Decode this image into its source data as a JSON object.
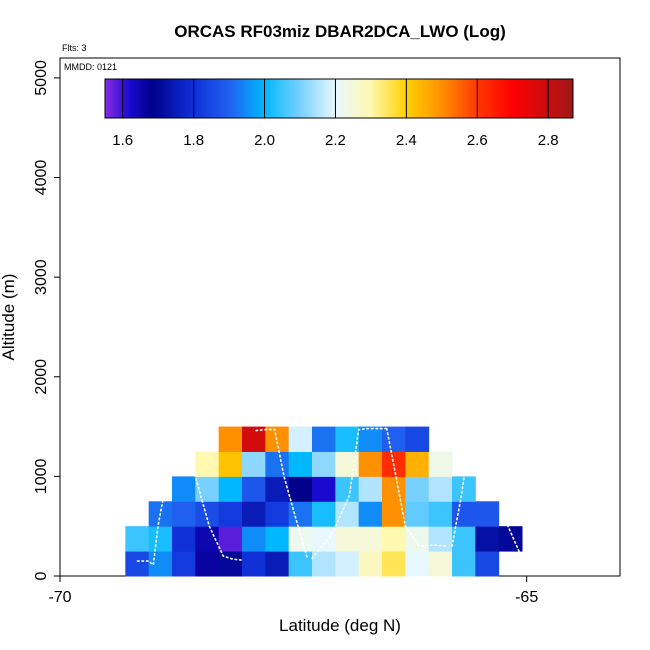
{
  "chart_data": {
    "type": "heatmap",
    "title": "ORCAS RF03miz DBAR2DCA_LWO (Log)",
    "xlabel": "Latitude (deg N)",
    "ylabel": "Altitude (m)",
    "flights_note": "Flts: 3",
    "date_note": "MMDD: 0121",
    "xlim": [
      -70,
      -64
    ],
    "ylim": [
      0,
      5200
    ],
    "x_ticks": [
      {
        "value": -70,
        "label": "-70"
      },
      {
        "value": -65,
        "label": "-65"
      }
    ],
    "y_ticks": [
      {
        "value": 0,
        "label": "0"
      },
      {
        "value": 1000,
        "label": "1000"
      },
      {
        "value": 2000,
        "label": "2000"
      },
      {
        "value": 3000,
        "label": "3000"
      },
      {
        "value": 4000,
        "label": "4000"
      },
      {
        "value": 5000,
        "label": "5000"
      }
    ],
    "colorbar": {
      "min": 1.55,
      "max": 2.87,
      "tick_values": [
        1.6,
        1.8,
        2.0,
        2.2,
        2.4,
        2.6,
        2.8
      ],
      "tick_labels": [
        "1.6",
        "1.8",
        "2.0",
        "2.2",
        "2.4",
        "2.6",
        "2.8"
      ],
      "stops": [
        {
          "value": 1.55,
          "color": "#8a2be2"
        },
        {
          "value": 1.62,
          "color": "#1a0ad0"
        },
        {
          "value": 1.68,
          "color": "#00008b"
        },
        {
          "value": 1.8,
          "color": "#1030d8"
        },
        {
          "value": 1.9,
          "color": "#2060f0"
        },
        {
          "value": 2.0,
          "color": "#00b8ff"
        },
        {
          "value": 2.1,
          "color": "#78d0ff"
        },
        {
          "value": 2.2,
          "color": "#e8f8ff"
        },
        {
          "value": 2.3,
          "color": "#fff8b0"
        },
        {
          "value": 2.4,
          "color": "#ffd000"
        },
        {
          "value": 2.5,
          "color": "#ff9000"
        },
        {
          "value": 2.6,
          "color": "#ff3800"
        },
        {
          "value": 2.7,
          "color": "#ff0000"
        },
        {
          "value": 2.87,
          "color": "#a01818"
        }
      ]
    },
    "grid": {
      "lat_min": -69.3,
      "lat_step": 0.25,
      "alt_step": 250,
      "columns": 17,
      "rows": 6
    },
    "cells": [
      [
        1.85,
        1.95,
        1.82,
        1.66,
        1.7,
        1.8,
        1.75,
        2.05,
        2.15,
        2.18,
        2.28,
        2.35,
        2.2,
        2.25,
        2.05,
        1.85,
        null
      ],
      [
        2.05,
        2.02,
        1.8,
        1.65,
        1.58,
        1.95,
        2.0,
        2.22,
        2.2,
        2.25,
        2.25,
        2.3,
        2.22,
        2.15,
        2.05,
        1.72,
        1.7
      ],
      [
        null,
        1.92,
        1.9,
        1.86,
        1.82,
        1.75,
        1.82,
        1.92,
        2.02,
        2.15,
        1.95,
        2.5,
        2.08,
        2.05,
        1.88,
        1.88,
        null
      ],
      [
        null,
        null,
        1.95,
        2.1,
        2.0,
        1.88,
        1.75,
        1.68,
        1.62,
        2.05,
        2.15,
        2.5,
        2.1,
        2.15,
        2.05,
        null,
        null
      ],
      [
        null,
        null,
        null,
        2.3,
        2.42,
        2.12,
        1.92,
        2.0,
        2.12,
        2.25,
        2.5,
        2.62,
        2.45,
        2.23,
        null,
        null,
        null
      ],
      [
        null,
        null,
        null,
        null,
        2.5,
        2.78,
        2.5,
        2.18,
        1.92,
        2.02,
        1.95,
        1.9,
        1.85,
        null,
        null,
        null,
        null
      ]
    ],
    "profiles": [
      {
        "lat": [
          -69.17,
          -69.05,
          -69.0,
          -68.95,
          -68.85,
          -68.75
        ],
        "alt": [
          150,
          150,
          110,
          500,
          1000,
          1450
        ]
      },
      {
        "lat": [
          -68.7,
          -68.55,
          -68.4,
          -68.25,
          -68.15,
          -68.05
        ],
        "alt": [
          1450,
          1000,
          500,
          200,
          170,
          160
        ]
      },
      {
        "lat": [
          -67.9,
          -67.8,
          -67.7,
          -67.6,
          -67.45,
          -67.35
        ],
        "alt": [
          1460,
          1470,
          1470,
          1000,
          500,
          180
        ]
      },
      {
        "lat": [
          -67.3,
          -67.1,
          -66.9,
          -66.8,
          -66.7,
          -66.5
        ],
        "alt": [
          180,
          400,
          800,
          1470,
          1480,
          1480
        ]
      },
      {
        "lat": [
          -66.5,
          -66.4,
          -66.3,
          -66.15,
          -66.0,
          -65.85
        ],
        "alt": [
          1480,
          1000,
          500,
          300,
          310,
          300
        ]
      },
      {
        "lat": [
          -65.8,
          -65.7,
          -65.6,
          -65.5,
          -65.45,
          -65.35
        ],
        "alt": [
          300,
          800,
          1470,
          1475,
          1475,
          1480
        ]
      },
      {
        "lat": [
          -65.3,
          -65.2,
          -65.05,
          -64.95,
          -64.8,
          -64.72
        ],
        "alt": [
          1000,
          500,
          180,
          300,
          320,
          400
        ]
      }
    ]
  }
}
